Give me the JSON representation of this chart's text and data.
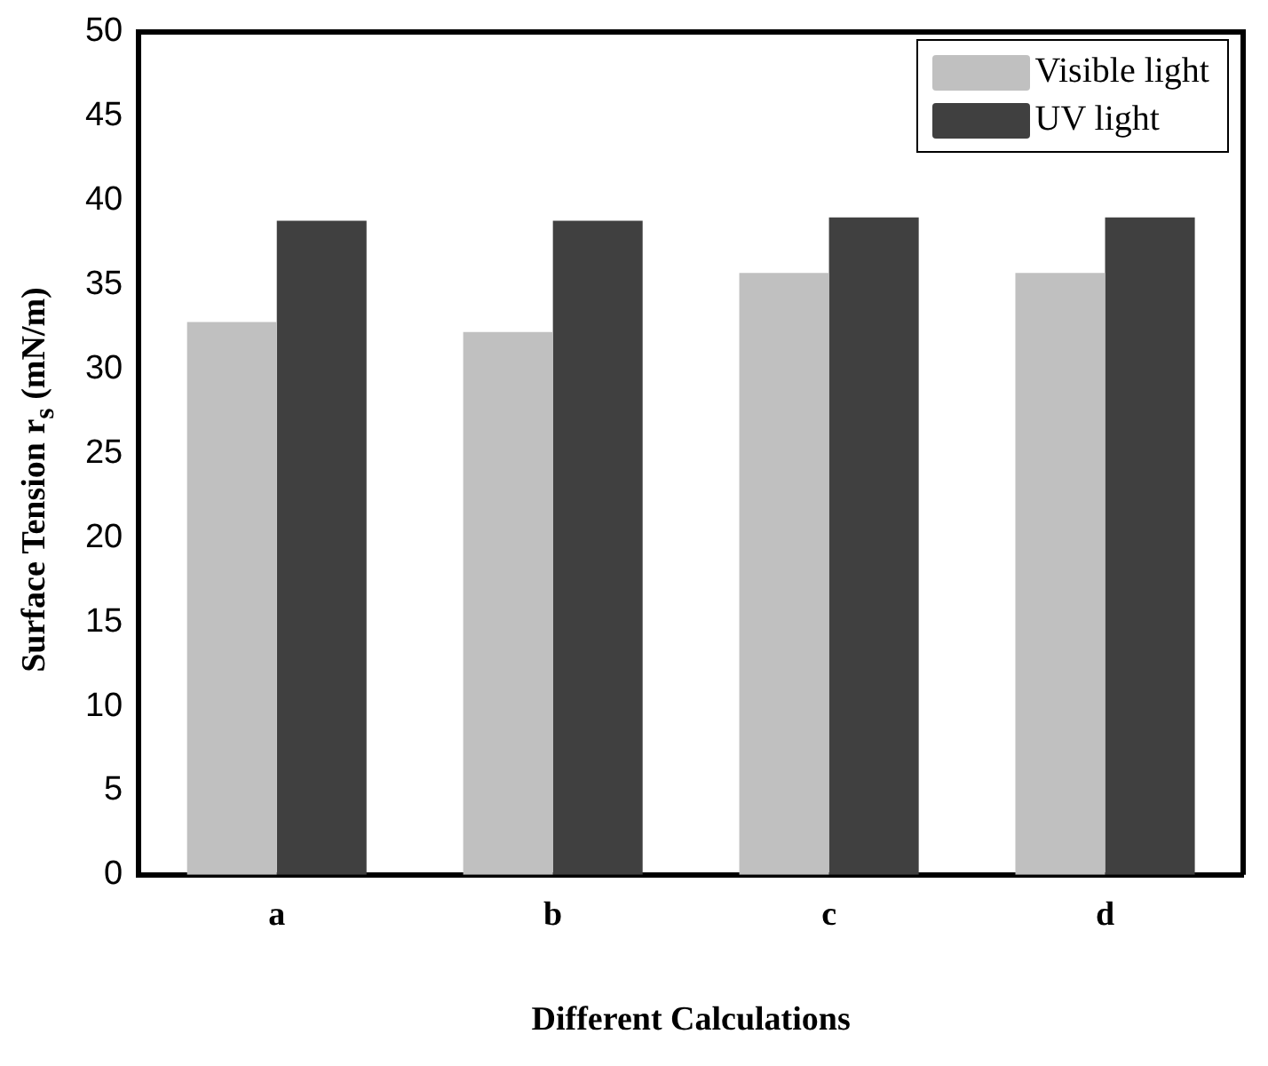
{
  "chart_data": {
    "type": "bar",
    "xlabel": "Different Calculations",
    "ylabel": "Surface Tension r$_{s}$ (mN/m)",
    "categories": [
      "a",
      "b",
      "c",
      "d"
    ],
    "series": [
      {
        "name": "Visible light",
        "color": "#c0c0c0",
        "values": [
          32.8,
          32.2,
          35.7,
          35.7
        ]
      },
      {
        "name": "UV light",
        "color": "#404040",
        "values": [
          38.8,
          38.8,
          39.0,
          39.0
        ]
      }
    ],
    "ylim": [
      0,
      50
    ],
    "yticks": [
      0,
      5,
      10,
      15,
      20,
      25,
      30,
      35,
      40,
      45,
      50
    ],
    "grid": false,
    "legend": "top right"
  }
}
